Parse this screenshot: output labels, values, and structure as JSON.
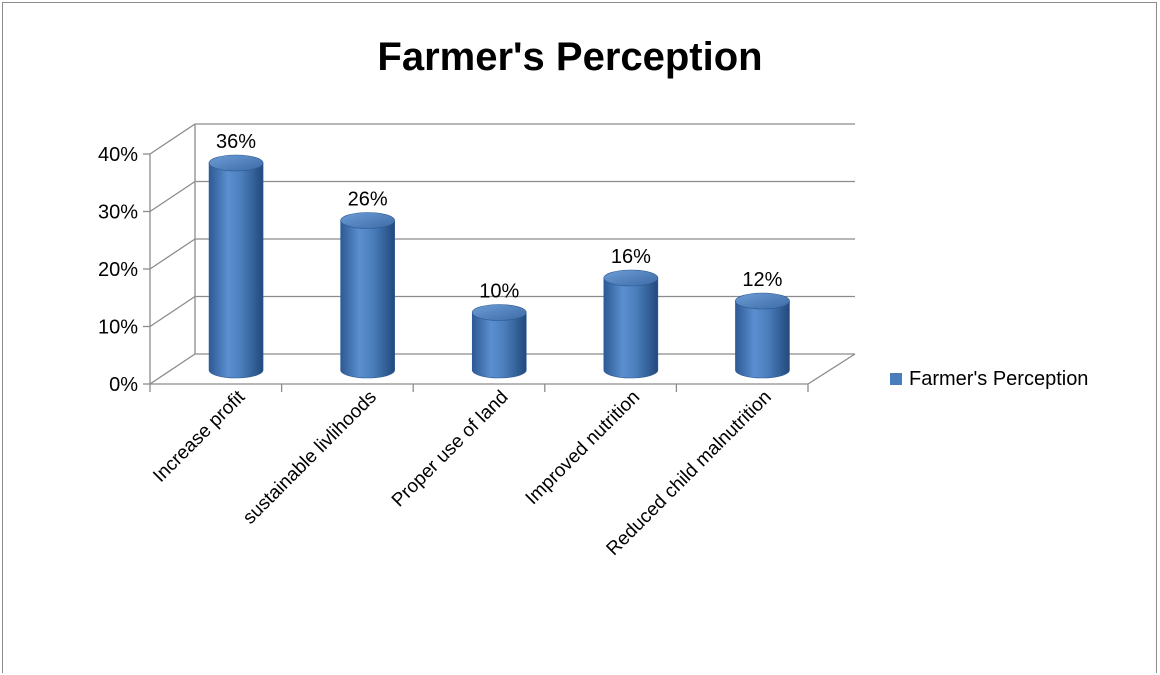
{
  "chart_data": {
    "type": "bar",
    "title": "Farmer's Perception",
    "categories": [
      "Increase profit",
      "sustainable livlihoods",
      "Proper use of land",
      "Improved nutrition",
      "Reduced child malnutrition"
    ],
    "series": [
      {
        "name": "Farmer's Perception",
        "values": [
          0.36,
          0.26,
          0.1,
          0.16,
          0.12
        ],
        "color": "#4a7ebb"
      }
    ],
    "data_labels": [
      "36%",
      "26%",
      "10%",
      "16%",
      "12%"
    ],
    "y_ticks": [
      "0%",
      "10%",
      "20%",
      "30%",
      "40%"
    ],
    "ylim": [
      0,
      0.4
    ],
    "grid": true,
    "legend_position": "right",
    "style": "3d-cylinder"
  }
}
